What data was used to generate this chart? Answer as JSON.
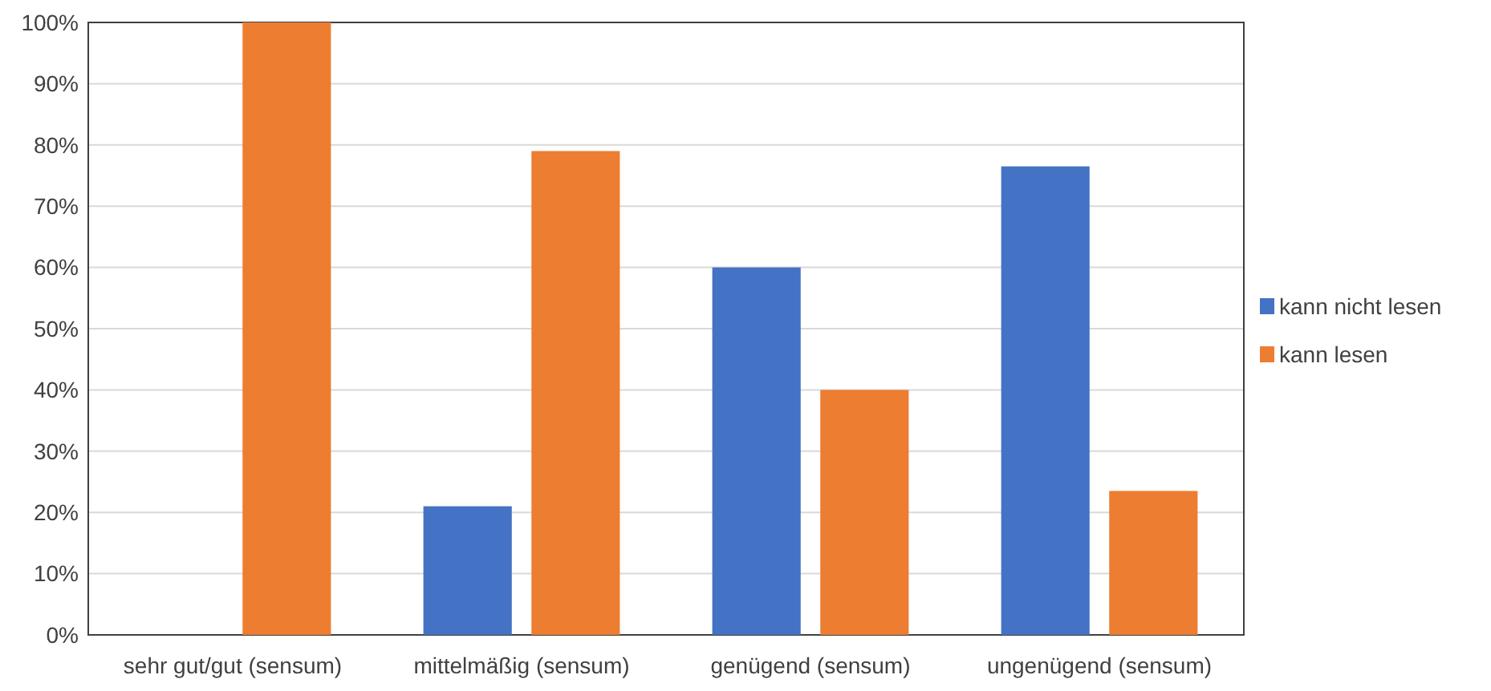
{
  "chart_data": {
    "type": "bar",
    "categories": [
      "sehr gut/gut (sensum)",
      "mittelmäßig (sensum)",
      "genügend (sensum)",
      "ungenügend (sensum)"
    ],
    "series": [
      {
        "name": "kann nicht lesen",
        "color": "#4472c4",
        "values": [
          0,
          21,
          60,
          76.5
        ]
      },
      {
        "name": "kann lesen",
        "color": "#ed7d31",
        "values": [
          100,
          79,
          40,
          23.5
        ]
      }
    ],
    "ylim": [
      0,
      100
    ],
    "yticks": [
      {
        "value": 0,
        "label": "0%"
      },
      {
        "value": 10,
        "label": "10%"
      },
      {
        "value": 20,
        "label": "20%"
      },
      {
        "value": 30,
        "label": "30%"
      },
      {
        "value": 40,
        "label": "40%"
      },
      {
        "value": 50,
        "label": "50%"
      },
      {
        "value": 60,
        "label": "60%"
      },
      {
        "value": 70,
        "label": "70%"
      },
      {
        "value": 80,
        "label": "80%"
      },
      {
        "value": 90,
        "label": "90%"
      },
      {
        "value": 100,
        "label": "100%"
      }
    ],
    "grid": "y",
    "legend": "right"
  }
}
